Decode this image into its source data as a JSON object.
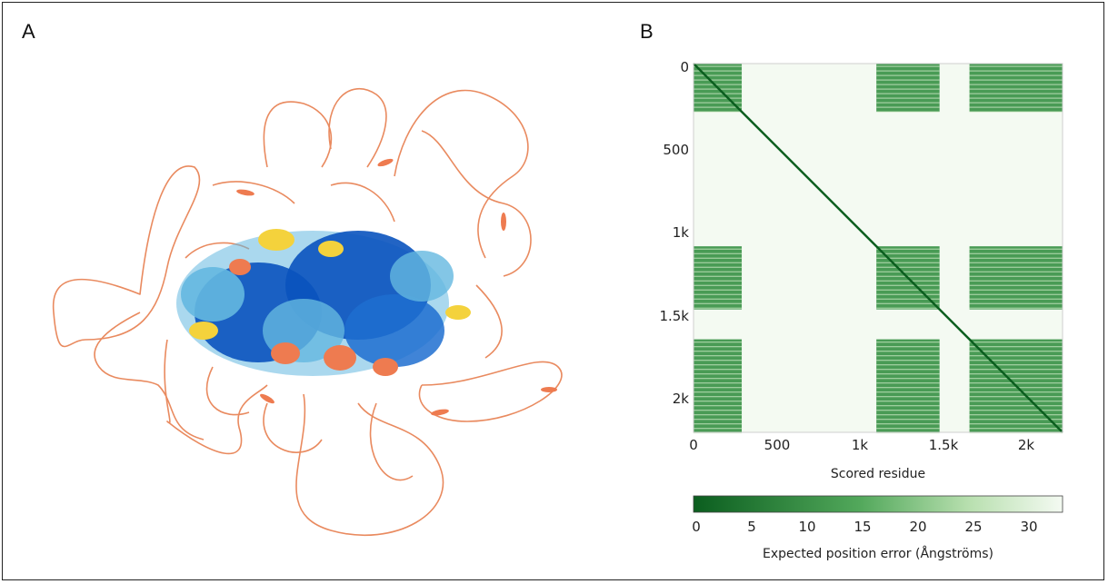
{
  "panels": {
    "a": {
      "letter": "A"
    },
    "b": {
      "letter": "B"
    }
  },
  "structure": {
    "colors": {
      "very_high": "#0a53be",
      "confident": "#64b8e0",
      "low": "#f4d23c",
      "very_low": "#ee7b50"
    }
  },
  "pae_plot": {
    "y_ticks": [
      "0",
      "500",
      "1k",
      "1.5k",
      "2k"
    ],
    "x_ticks": [
      "0",
      "500",
      "1k",
      "1.5k",
      "2k"
    ],
    "x_axis_label": "Scored residue",
    "colorbar": {
      "ticks": [
        "0",
        "5",
        "10",
        "15",
        "20",
        "25",
        "30"
      ],
      "label": "Expected position error (Ångströms)",
      "dark_color": "#0b5e1f",
      "light_color": "#f4faf2"
    }
  },
  "chart_data": {
    "type": "heatmap",
    "x_label": "Scored residue",
    "x_ticks": [
      0,
      500,
      1000,
      1500,
      2000
    ],
    "y_ticks": [
      0,
      500,
      1000,
      1500,
      2000
    ],
    "x_range": [
      0,
      2220
    ],
    "y_range": [
      0,
      2220
    ],
    "colorbar_range": [
      0,
      32
    ],
    "colorbar_label": "Expected position error (Ångströms)",
    "low_error_blocks": [
      {
        "residues": [
          0,
          290
        ]
      },
      {
        "residues": [
          1100,
          1480
        ]
      },
      {
        "residues": [
          1660,
          2220
        ]
      }
    ],
    "high_error_background_value": 30
  }
}
